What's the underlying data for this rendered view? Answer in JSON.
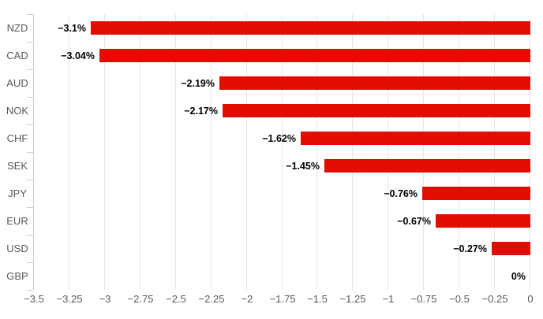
{
  "chart_data": {
    "type": "bar",
    "orientation": "horizontal",
    "title": "",
    "xlabel": "",
    "ylabel": "",
    "categories": [
      "NZD",
      "CAD",
      "AUD",
      "NOK",
      "CHF",
      "SEK",
      "JPY",
      "EUR",
      "USD",
      "GBP"
    ],
    "values": [
      -3.1,
      -3.04,
      -2.19,
      -2.17,
      -1.62,
      -1.45,
      -0.76,
      -0.67,
      -0.27,
      0
    ],
    "data_labels": [
      "−3.1%",
      "−3.04%",
      "−2.19%",
      "−2.17%",
      "−1.62%",
      "−1.45%",
      "−0.76%",
      "−0.67%",
      "−0.27%",
      "0%"
    ],
    "unit": "%",
    "xlim": [
      -3.5,
      0
    ],
    "x_ticks": [
      -3.5,
      -3.25,
      -3,
      -2.75,
      -2.5,
      -2.25,
      -2,
      -1.75,
      -1.5,
      -1.25,
      -1,
      -0.75,
      -0.5,
      -0.25,
      0
    ],
    "x_tick_labels": [
      "−3.5",
      "−3.25",
      "−3",
      "−2.75",
      "−2.5",
      "−2.25",
      "−2",
      "−1.75",
      "−1.5",
      "−1.25",
      "−1",
      "−0.75",
      "−0.5",
      "−0.25",
      "0"
    ],
    "grid": true,
    "legend": false,
    "colors": {
      "bar": "#e00d00",
      "gridline": "#e6e6e6",
      "axis_line": "#c6cde3",
      "tick_label": "#585858",
      "category_label": "#585858",
      "data_label": "#000000",
      "background": "#ffffff"
    }
  }
}
